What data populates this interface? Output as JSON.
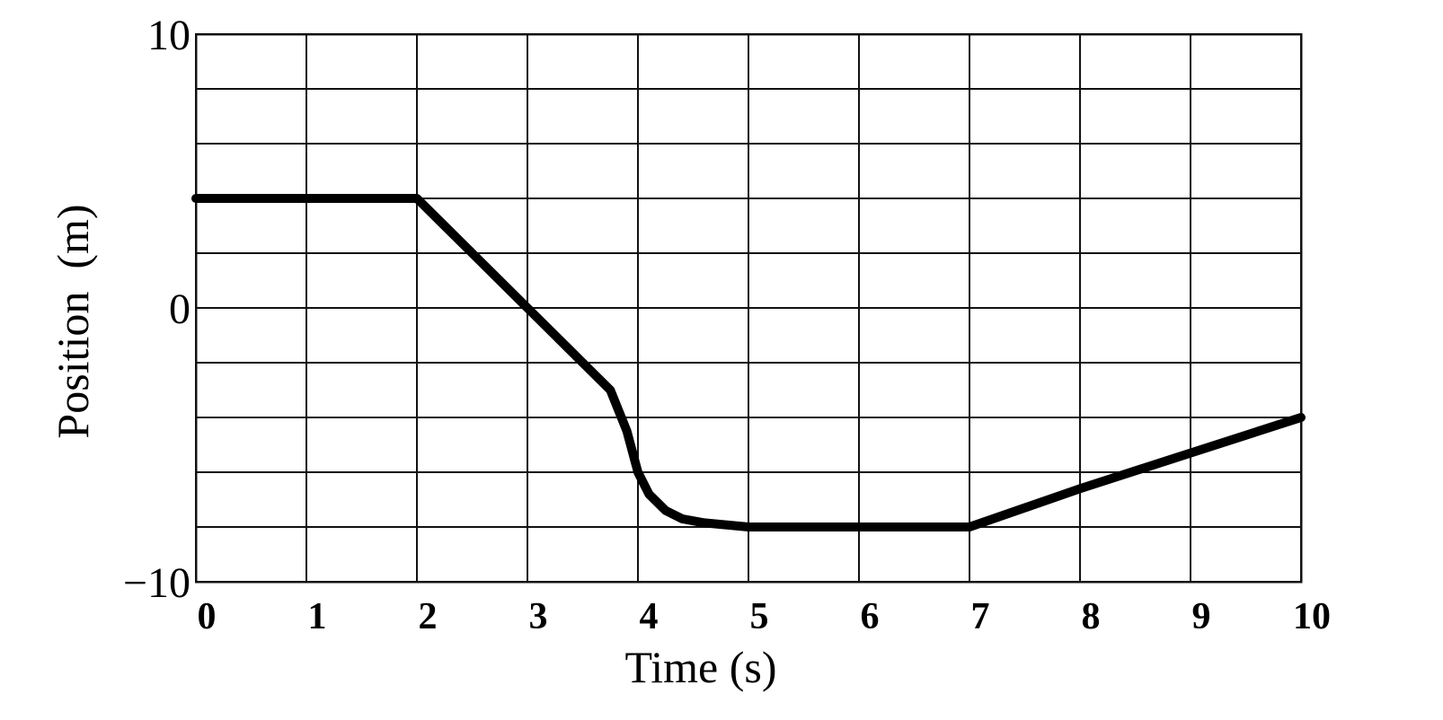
{
  "chart_data": {
    "type": "line",
    "title": "",
    "xlabel": "Time (s)",
    "ylabel": "Position  (m)",
    "xlim": [
      0,
      10
    ],
    "ylim": [
      -10,
      10
    ],
    "x_ticks": [
      0,
      1,
      2,
      3,
      4,
      5,
      6,
      7,
      8,
      9,
      10
    ],
    "x_tick_labels": [
      "0",
      "1",
      "2",
      "3",
      "4",
      "5",
      "6",
      "7",
      "8",
      "9",
      "10"
    ],
    "y_ticks": [
      10,
      0,
      -10
    ],
    "y_tick_labels": [
      "10",
      "0",
      "−10"
    ],
    "grid": true,
    "grid_x_step": 1,
    "grid_y_step": 2,
    "series": [
      {
        "x": [
          0,
          2,
          3,
          3.25,
          3.5,
          3.75,
          3.9,
          4.0,
          4.1,
          4.25,
          4.4,
          4.6,
          5,
          6,
          7,
          8,
          9,
          10
        ],
        "y": [
          4,
          4,
          0,
          -1,
          -2,
          -3,
          -4.5,
          -6,
          -6.8,
          -7.4,
          -7.7,
          -7.85,
          -8,
          -8,
          -8,
          -6.6,
          -5.3,
          -4
        ],
        "color": "#000000"
      }
    ]
  }
}
